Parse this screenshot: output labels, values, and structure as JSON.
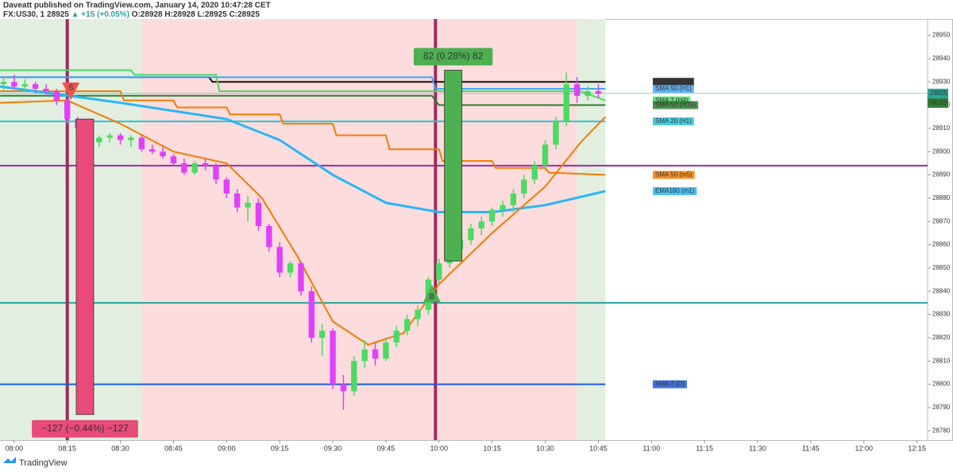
{
  "chart_data": {
    "type": "candlestick",
    "header": {
      "publisher": "Daveatt published on TradingView.com, January 14, 2020 10:47:28 CET",
      "symbol": "FX:US30, 1",
      "last": "28925",
      "change": "▲ +15 (+0.05%)",
      "open": "O:28928",
      "high": "H:28928",
      "low": "L:28925",
      "close": "C:28925"
    },
    "x": [
      "07:57",
      "08:00",
      "08:03",
      "08:06",
      "08:09",
      "08:12",
      "08:15",
      "08:18",
      "08:21",
      "08:24",
      "08:27",
      "08:30",
      "08:33",
      "08:36",
      "08:39",
      "08:42",
      "08:45",
      "08:48",
      "08:51",
      "08:54",
      "08:57",
      "09:00",
      "09:03",
      "09:06",
      "09:09",
      "09:12",
      "09:15",
      "09:18",
      "09:21",
      "09:24",
      "09:27",
      "09:30",
      "09:33",
      "09:36",
      "09:39",
      "09:42",
      "09:45",
      "09:48",
      "09:51",
      "09:54",
      "09:57",
      "10:00",
      "10:03",
      "10:06",
      "10:09",
      "10:12",
      "10:15",
      "10:18",
      "10:21",
      "10:24",
      "10:27",
      "10:30",
      "10:33",
      "10:36",
      "10:39",
      "10:42",
      "10:45"
    ],
    "open": [
      28929,
      28930,
      28928,
      28929,
      28927,
      28926,
      28922,
      28914,
      28910,
      28904,
      28906,
      28907,
      28905,
      28906,
      28901,
      28900,
      28898,
      28895,
      28891,
      28895,
      28894,
      28888,
      28882,
      28876,
      28878,
      28868,
      28859,
      28848,
      28852,
      28840,
      28820,
      28823,
      28800,
      28797,
      28810,
      28815,
      28811,
      28818,
      28823,
      28828,
      28832,
      28845,
      28852,
      28858,
      28862,
      28867,
      28870,
      28875,
      28877,
      28882,
      28888,
      28894,
      28903,
      28913,
      28929,
      28924,
      28926
    ],
    "high": [
      28932,
      28933,
      28931,
      28930,
      28929,
      28927,
      28923,
      28915,
      28911,
      28907,
      28908,
      28908,
      28907,
      28907,
      28903,
      28902,
      28899,
      28897,
      28896,
      28897,
      28895,
      28889,
      28884,
      28881,
      28880,
      28869,
      28861,
      28853,
      28853,
      28842,
      28826,
      28824,
      28804,
      28812,
      28819,
      28818,
      28820,
      28825,
      28830,
      28834,
      28846,
      28854,
      28860,
      28864,
      28869,
      28872,
      28876,
      28879,
      28884,
      28890,
      28896,
      28905,
      28915,
      28934,
      28932,
      28928,
      28929
    ],
    "low": [
      28926,
      28927,
      28926,
      28925,
      28924,
      28920,
      28912,
      28908,
      28902,
      28902,
      28904,
      28903,
      28902,
      28900,
      28899,
      28897,
      28894,
      28890,
      28890,
      28892,
      28886,
      28880,
      28874,
      28870,
      28866,
      28857,
      28846,
      28846,
      28838,
      28818,
      28812,
      28798,
      28789,
      28795,
      28807,
      28808,
      28810,
      28816,
      28821,
      28825,
      28830,
      28843,
      28850,
      28855,
      28860,
      28864,
      28868,
      28872,
      28874,
      28880,
      28886,
      28892,
      28901,
      28911,
      28921,
      28922,
      28923
    ],
    "close": [
      28930,
      28928,
      28929,
      28927,
      28926,
      28922,
      28914,
      28910,
      28904,
      28906,
      28907,
      28905,
      28906,
      28901,
      28900,
      28898,
      28895,
      28891,
      28895,
      28894,
      28888,
      28882,
      28876,
      28878,
      28868,
      28859,
      28848,
      28852,
      28840,
      28820,
      28823,
      28800,
      28797,
      28810,
      28815,
      28811,
      28818,
      28823,
      28828,
      28832,
      28845,
      28852,
      28858,
      28862,
      28867,
      28870,
      28875,
      28877,
      28882,
      28888,
      28894,
      28903,
      28913,
      28929,
      28924,
      28926,
      28925
    ],
    "up_color": "#4cd964",
    "down_color": "#e040fb",
    "xlim": [
      "07:56",
      "12:18"
    ],
    "ylim": [
      28776,
      28957
    ],
    "xticks": [
      "08:00",
      "08:15",
      "08:30",
      "08:45",
      "09:00",
      "09:15",
      "09:30",
      "09:45",
      "10:00",
      "10:15",
      "10:30",
      "10:45",
      "11:00",
      "11:15",
      "11:30",
      "11:45",
      "12:00",
      "12:15"
    ],
    "yticks": [
      28780,
      28790,
      28800,
      28810,
      28820,
      28830,
      28840,
      28850,
      28860,
      28870,
      28880,
      28890,
      28900,
      28910,
      28920,
      28930,
      28940,
      28950
    ],
    "zones": [
      {
        "from": "07:56",
        "to": "08:36",
        "color": "#e2eedf"
      },
      {
        "from": "08:36",
        "to": "10:39",
        "color": "#fcdcdc"
      },
      {
        "from": "10:39",
        "to": "10:47",
        "color": "#e2eedf"
      }
    ],
    "series": [
      {
        "name": "SMA 20 (H4)",
        "color": "#111111",
        "x": [
          "07:56",
          "08:55",
          "08:56",
          "10:47"
        ],
        "values": [
          28932,
          28932,
          28930,
          28930
        ]
      },
      {
        "name": "SMA 50 (H1)",
        "color": "#42a5f5",
        "x": [
          "07:56",
          "09:58",
          "09:59",
          "10:47"
        ],
        "values": [
          28932,
          28932,
          28927,
          28927
        ]
      },
      {
        "name": "SMA 7 (H4)",
        "color": "#4cd964",
        "x": [
          "07:56",
          "08:33",
          "08:34",
          "08:57",
          "08:58",
          "10:40",
          "10:47"
        ],
        "values": [
          28935,
          28935,
          28933,
          28933,
          28926,
          28926,
          28922
        ]
      },
      {
        "name": "SMA 50 (m15)",
        "color": "#2e7d32",
        "x": [
          "07:56",
          "09:58",
          "10:00",
          "10:47"
        ],
        "values": [
          28924,
          28924,
          28920,
          28920
        ]
      },
      {
        "name": "SMA 20 (H1)",
        "color": "#26c6da",
        "x": [
          "07:56",
          "10:47"
        ],
        "values": [
          28913,
          28913
        ]
      },
      {
        "name": "SMA 50 (m5)",
        "color": "#f57c00",
        "x": [
          "07:56",
          "08:30",
          "08:31",
          "08:45",
          "08:46",
          "09:00",
          "09:01",
          "09:15",
          "09:16",
          "09:30",
          "09:31",
          "09:45",
          "09:46",
          "10:00",
          "10:01",
          "10:15",
          "10:16",
          "10:30",
          "10:31",
          "10:47"
        ],
        "values": [
          28926,
          28926,
          28922,
          28922,
          28919,
          28919,
          28916,
          28916,
          28912,
          28912,
          28907,
          28907,
          28901,
          28901,
          28896,
          28896,
          28893,
          28893,
          28891,
          28890
        ]
      },
      {
        "name": "EMA180 (m1)",
        "color": "#29b6f6",
        "x": [
          "07:56",
          "08:30",
          "09:00",
          "09:15",
          "09:30",
          "09:45",
          "10:00",
          "10:15",
          "10:30",
          "10:47"
        ],
        "values": [
          28928,
          28921,
          28914,
          28905,
          28890,
          28878,
          28874,
          28874,
          28877,
          28883
        ]
      },
      {
        "color": "#f57c00",
        "x": [
          "07:56",
          "08:15",
          "08:30",
          "08:45",
          "09:00",
          "09:10",
          "09:20",
          "09:30",
          "09:40",
          "09:50",
          "10:00",
          "10:15",
          "10:30",
          "10:40",
          "10:47"
        ],
        "values": [
          28921,
          28922,
          28912,
          28900,
          28895,
          28880,
          28855,
          28827,
          28817,
          28822,
          28843,
          28865,
          28885,
          28904,
          28915
        ]
      },
      {
        "name": "SMA 7 (D)",
        "color": "#1e5bd6",
        "x": [
          "07:56",
          "10:47"
        ],
        "values": [
          28800,
          28800
        ]
      }
    ],
    "hlines": [
      {
        "value": 28894,
        "color": "#9c27b0"
      },
      {
        "value": 28835,
        "color": "#26a69a"
      }
    ],
    "vlines": [
      {
        "x": "08:15",
        "color": "#9c2a5e"
      },
      {
        "x": "09:59",
        "color": "#9c2a5e"
      }
    ],
    "measures": [
      {
        "label": "82 (0.28%) 82",
        "x": "10:04",
        "from": 28853,
        "to": 28935,
        "color": "#4caf50"
      },
      {
        "label": "−127 (−0.44%) −127",
        "x": "08:20",
        "from": 28914,
        "to": 28787,
        "color": "#e84a7a"
      }
    ],
    "markers": [
      {
        "text": "S",
        "x": "08:16",
        "price": 28926,
        "color": "#ef5350"
      },
      {
        "text": "B",
        "x": "09:58",
        "price": 28839,
        "color": "#4caf50"
      }
    ],
    "last_price": 28925,
    "countdown": "00:33"
  },
  "footer": "TradingView"
}
